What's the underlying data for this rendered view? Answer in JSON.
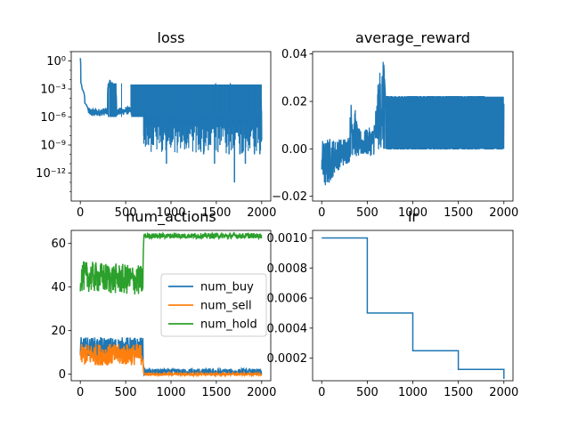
{
  "figure": {
    "background": "#ffffff"
  },
  "chart_data": [
    {
      "id": "loss",
      "type": "line",
      "title": "loss",
      "xlabel": "",
      "ylabel": "",
      "yscale": "log",
      "xlim": [
        -100,
        2100
      ],
      "ylim": [
        1e-15,
        10
      ],
      "xticks": [
        0,
        500,
        1000,
        1500,
        2000
      ],
      "xtick_labels": [
        "0",
        "500",
        "1000",
        "1500",
        "2000"
      ],
      "yticks": [
        1e-12,
        1e-09,
        1e-06,
        0.001,
        1
      ],
      "ytick_labels": [
        "10⁻¹²",
        "10⁻⁹",
        "10⁻⁶",
        "10⁻³",
        "10⁰"
      ],
      "grid": false,
      "series": [
        {
          "color": "#1f77b4",
          "x": [
            0,
            5,
            20,
            50,
            90,
            120,
            200,
            300,
            320,
            400,
            450,
            560,
            600,
            700,
            800,
            900,
            1000,
            1100,
            1200,
            1300,
            1400,
            1500,
            1600,
            1700,
            1800,
            1900,
            2000
          ],
          "y": [
            2,
            0.005,
            0.001,
            3e-05,
            4e-06,
            3e-06,
            3e-06,
            4e-06,
            0.004,
            4e-06,
            4e-06,
            5e-06,
            0.004,
            0.003,
            0.003,
            0.003,
            0.003,
            0.003,
            0.003,
            0.003,
            0.003,
            0.003,
            0.003,
            0.003,
            0.003,
            0.003,
            1e-07
          ],
          "spikes_high": [
            [
              320,
              400,
              0.004
            ],
            [
              450,
              460,
              0.004
            ],
            [
              560,
              2000,
              0.003
            ]
          ],
          "spikes_low": [
            [
              310,
              1e-06
            ],
            [
              560,
              1e-05
            ],
            [
              600,
              1e-06
            ],
            [
              700,
              1e-08
            ],
            [
              740,
              1e-08
            ],
            [
              800,
              1e-09
            ],
            [
              880,
              1e-08
            ],
            [
              950,
              1e-11
            ],
            [
              1000,
              1e-09
            ],
            [
              1070,
              1e-09
            ],
            [
              1120,
              1e-08
            ],
            [
              1170,
              1e-09
            ],
            [
              1240,
              1e-08
            ],
            [
              1300,
              1e-09
            ],
            [
              1360,
              1e-10
            ],
            [
              1420,
              1e-09
            ],
            [
              1480,
              1e-11
            ],
            [
              1540,
              1e-09
            ],
            [
              1600,
              1e-08
            ],
            [
              1640,
              1e-10
            ],
            [
              1700,
              1e-13
            ],
            [
              1760,
              1e-10
            ],
            [
              1820,
              1e-11
            ],
            [
              1860,
              1e-09
            ],
            [
              1920,
              1e-10
            ],
            [
              1980,
              1e-10
            ]
          ]
        }
      ]
    },
    {
      "id": "average_reward",
      "type": "line",
      "title": "average_reward",
      "xlabel": "",
      "ylabel": "",
      "xlim": [
        -100,
        2100
      ],
      "ylim": [
        -0.022,
        0.041
      ],
      "xticks": [
        0,
        500,
        1000,
        1500,
        2000
      ],
      "xtick_labels": [
        "0",
        "500",
        "1000",
        "1500",
        "2000"
      ],
      "yticks": [
        -0.02,
        0.0,
        0.02,
        0.04
      ],
      "ytick_labels": [
        "−0.02",
        "0.00",
        "0.02",
        "0.04"
      ],
      "grid": false,
      "series": [
        {
          "color": "#1f77b4",
          "x": [
            0,
            20,
            40,
            80,
            150,
            250,
            300,
            320,
            350,
            400,
            450,
            500,
            560,
            600,
            620,
            650,
            680,
            700,
            800,
            1000,
            1200,
            1400,
            1600,
            1800,
            2000
          ],
          "y_high": [
            0.005,
            0.003,
            0.004,
            0.005,
            0.004,
            0.005,
            0.006,
            0.02,
            0.021,
            0.009,
            0.007,
            0.009,
            0.009,
            0.02,
            0.028,
            0.038,
            0.037,
            0.022,
            0.022,
            0.022,
            0.022,
            0.022,
            0.022,
            0.022,
            0.019
          ],
          "y_low": [
            -0.01,
            -0.019,
            -0.017,
            -0.015,
            -0.01,
            -0.007,
            -0.006,
            -0.003,
            -0.003,
            -0.004,
            -0.003,
            -0.003,
            -0.003,
            -0.002,
            -0.001,
            0.0,
            0.0,
            0.0,
            0.0,
            0.0,
            0.0,
            0.0,
            0.0,
            0.0,
            0.0
          ]
        }
      ]
    },
    {
      "id": "num_actions",
      "type": "line",
      "title": "num_actions",
      "xlabel": "",
      "ylabel": "",
      "xlim": [
        -100,
        2100
      ],
      "ylim": [
        -3,
        66
      ],
      "xticks": [
        0,
        500,
        1000,
        1500,
        2000
      ],
      "xtick_labels": [
        "0",
        "500",
        "1000",
        "1500",
        "2000"
      ],
      "yticks": [
        0,
        20,
        40,
        60
      ],
      "ytick_labels": [
        "0",
        "20",
        "40",
        "60"
      ],
      "grid": false,
      "legend": {
        "position": "center-right",
        "entries": [
          "num_buy",
          "num_sell",
          "num_hold"
        ]
      },
      "series": [
        {
          "name": "num_buy",
          "color": "#1f77b4",
          "x": [
            0,
            690,
            700,
            2000
          ],
          "mean": [
            12,
            12,
            1,
            1
          ],
          "spread": [
            5,
            5,
            1.5,
            1.5
          ]
        },
        {
          "name": "num_sell",
          "color": "#ff7f0e",
          "x": [
            0,
            690,
            700,
            2000
          ],
          "mean": [
            9,
            9,
            0,
            0
          ],
          "spread": [
            5,
            5,
            0.5,
            0.5
          ]
        },
        {
          "name": "num_hold",
          "color": "#2ca02c",
          "x": [
            0,
            690,
            700,
            2000
          ],
          "mean": [
            45,
            43,
            63.5,
            63.5
          ],
          "spread": [
            7,
            7,
            1.2,
            1.2
          ]
        }
      ]
    },
    {
      "id": "lr",
      "type": "line",
      "title": "lr",
      "xlabel": "",
      "ylabel": "",
      "xlim": [
        -100,
        2100
      ],
      "ylim": [
        5e-05,
        0.00105
      ],
      "xticks": [
        0,
        500,
        1000,
        1500,
        2000
      ],
      "xtick_labels": [
        "0",
        "500",
        "1000",
        "1500",
        "2000"
      ],
      "yticks": [
        0.0002,
        0.0004,
        0.0006,
        0.0008,
        0.001
      ],
      "ytick_labels": [
        "0.0002",
        "0.0004",
        "0.0006",
        "0.0008",
        "0.0010"
      ],
      "grid": false,
      "series": [
        {
          "color": "#1f77b4",
          "x": [
            0,
            500,
            500,
            1000,
            1000,
            1500,
            1500,
            2000,
            2000
          ],
          "y": [
            0.001,
            0.001,
            0.0005,
            0.0005,
            0.00025,
            0.00025,
            0.000125,
            0.000125,
            6.25e-05
          ]
        }
      ]
    }
  ]
}
